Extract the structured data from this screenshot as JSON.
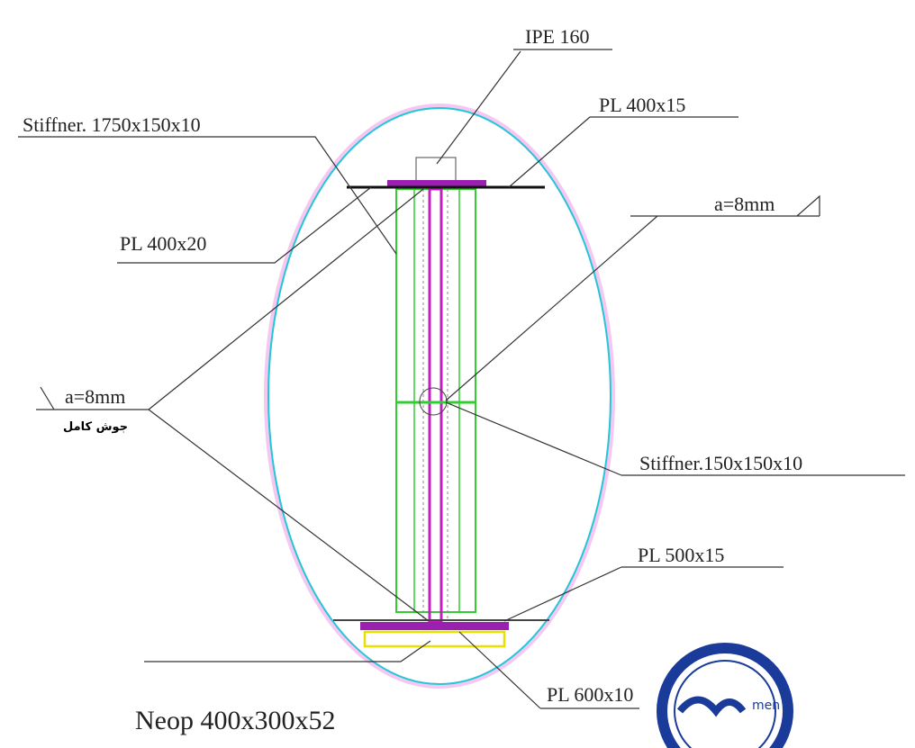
{
  "labels": {
    "ipe": "IPE 160",
    "pl_top": "PL 400x15",
    "stiffener_long": "Stiffner. 1750x150x10",
    "weld_right": "a=8mm",
    "pl_400x20": "PL 400x20",
    "weld_left": "a=8mm",
    "weld_note": "جوش کامل",
    "stiffener_short": "Stiffner.150x150x10",
    "pl_500": "PL 500x15",
    "pl_600": "PL 600x10",
    "neop": "Neop 400x300x52"
  },
  "logo": {
    "text": "men"
  }
}
